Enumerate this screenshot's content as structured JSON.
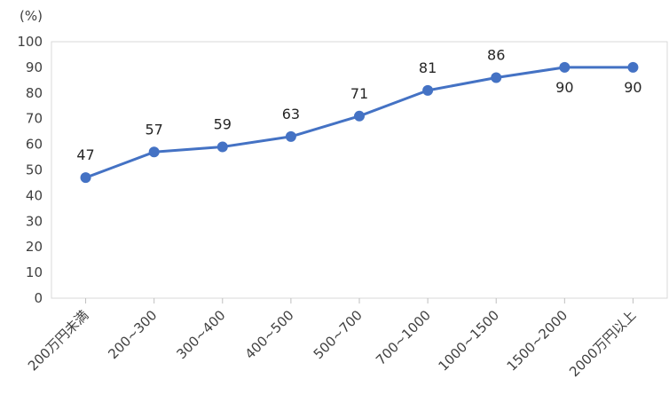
{
  "chart_data": {
    "type": "line",
    "title": "",
    "unit_label": "(%)",
    "categories": [
      "200万円未満",
      "200~300",
      "300~400",
      "400~500",
      "500~700",
      "700~1000",
      "1000~1500",
      "1500~2000",
      "2000万円以上"
    ],
    "series": [
      {
        "values": [
          47,
          57,
          59,
          63,
          71,
          81,
          86,
          90,
          90
        ]
      }
    ],
    "data_labels": [
      "47",
      "57",
      "59",
      "63",
      "71",
      "81",
      "86",
      "90",
      "90"
    ],
    "y_ticks": [
      "0",
      "10",
      "20",
      "30",
      "40",
      "50",
      "60",
      "70",
      "80",
      "90",
      "100"
    ],
    "ylim": [
      0,
      100
    ],
    "grid": false,
    "legend": "none",
    "line_color": "#4472c4"
  }
}
